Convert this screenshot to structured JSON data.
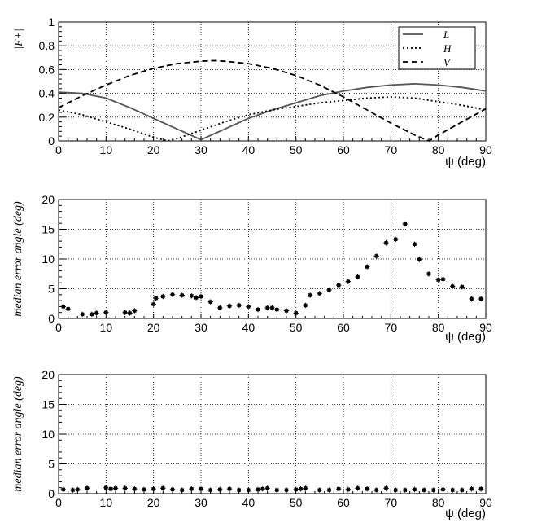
{
  "chart_data": [
    {
      "type": "line",
      "ylabel": "|F+|",
      "xlabel": "ψ (deg)",
      "xlim": [
        0,
        90
      ],
      "ylim": [
        0,
        1
      ],
      "xticks": [
        "0",
        "10",
        "20",
        "30",
        "40",
        "50",
        "60",
        "70",
        "80",
        "90"
      ],
      "yticks": [
        "0",
        "0.2",
        "0.4",
        "0.6",
        "0.8",
        "1"
      ],
      "grid": true,
      "legend_position": "top-right",
      "series": [
        {
          "name": "L",
          "style": "solid",
          "color": "#555555",
          "x": [
            0,
            5,
            10,
            15,
            20,
            25,
            30,
            35,
            40,
            45,
            50,
            55,
            60,
            65,
            70,
            75,
            80,
            85,
            90
          ],
          "y": [
            0.41,
            0.4,
            0.36,
            0.28,
            0.19,
            0.1,
            0.01,
            0.1,
            0.19,
            0.26,
            0.32,
            0.38,
            0.42,
            0.45,
            0.47,
            0.48,
            0.47,
            0.45,
            0.42
          ]
        },
        {
          "name": "H",
          "style": "dotted",
          "color": "#000000",
          "x": [
            0,
            5,
            10,
            15,
            20,
            23,
            25,
            30,
            35,
            40,
            45,
            50,
            55,
            60,
            65,
            70,
            75,
            80,
            85,
            90
          ],
          "y": [
            0.26,
            0.22,
            0.16,
            0.1,
            0.03,
            0.0,
            0.02,
            0.09,
            0.16,
            0.22,
            0.26,
            0.29,
            0.32,
            0.34,
            0.36,
            0.37,
            0.36,
            0.33,
            0.3,
            0.26
          ]
        },
        {
          "name": "V",
          "style": "dashed",
          "color": "#000000",
          "x": [
            0,
            5,
            10,
            15,
            20,
            25,
            30,
            33,
            35,
            40,
            45,
            50,
            55,
            60,
            65,
            70,
            75,
            78,
            80,
            85,
            90
          ],
          "y": [
            0.28,
            0.38,
            0.47,
            0.55,
            0.61,
            0.65,
            0.67,
            0.675,
            0.67,
            0.65,
            0.61,
            0.55,
            0.47,
            0.37,
            0.26,
            0.15,
            0.05,
            0.0,
            0.05,
            0.16,
            0.27
          ]
        }
      ]
    },
    {
      "type": "scatter",
      "ylabel": "median error angle (deg)",
      "xlabel": "ψ (deg)",
      "xlim": [
        0,
        90
      ],
      "ylim": [
        0,
        20
      ],
      "xticks": [
        "0",
        "10",
        "20",
        "30",
        "40",
        "50",
        "60",
        "70",
        "80",
        "90"
      ],
      "yticks": [
        "0",
        "5",
        "10",
        "15",
        "20"
      ],
      "grid": true,
      "x": [
        1,
        2,
        5,
        7,
        8,
        10,
        14,
        15,
        16,
        20,
        20.5,
        22,
        24,
        26,
        28,
        29,
        30,
        32,
        34,
        36,
        38,
        40,
        42,
        44,
        45,
        46,
        48,
        50,
        52,
        53,
        55,
        57,
        59,
        61,
        63,
        65,
        67,
        69,
        71,
        73,
        75,
        76,
        78,
        80,
        81,
        83,
        85,
        87,
        89
      ],
      "y": [
        2,
        1.6,
        0.7,
        0.7,
        0.9,
        1.0,
        1.0,
        0.9,
        1.3,
        2.4,
        3.4,
        3.7,
        4.0,
        3.9,
        3.8,
        3.5,
        3.7,
        2.8,
        1.8,
        2.1,
        2.2,
        2.0,
        1.5,
        1.8,
        1.8,
        1.5,
        1.3,
        0.9,
        2.2,
        3.9,
        4.2,
        4.8,
        5.6,
        6.2,
        7.0,
        8.7,
        10.5,
        12.7,
        13.3,
        15.9,
        12.5,
        9.9,
        7.5,
        6.5,
        6.6,
        5.4,
        5.3,
        3.3,
        3.3
      ]
    },
    {
      "type": "scatter",
      "ylabel": "median error angle (deg)",
      "xlabel": "ψ (deg)",
      "xlim": [
        0,
        90
      ],
      "ylim": [
        0,
        20
      ],
      "xticks": [
        "0",
        "10",
        "20",
        "30",
        "40",
        "50",
        "60",
        "70",
        "80",
        "90"
      ],
      "yticks": [
        "0",
        "5",
        "10",
        "15",
        "20"
      ],
      "grid": true,
      "x": [
        1,
        3,
        4,
        6,
        10,
        11,
        12,
        14,
        16,
        18,
        20,
        22,
        24,
        26,
        28,
        30,
        32,
        34,
        36,
        38,
        40,
        42,
        43,
        44,
        46,
        48,
        50,
        51,
        52,
        55,
        57,
        59,
        61,
        63,
        65,
        67,
        69,
        71,
        73,
        75,
        77,
        79,
        81,
        83,
        85,
        87,
        89
      ],
      "y": [
        0.7,
        0.6,
        0.7,
        0.9,
        1.0,
        0.8,
        0.9,
        0.9,
        0.8,
        0.7,
        0.8,
        0.9,
        0.7,
        0.6,
        0.8,
        0.8,
        0.6,
        0.7,
        0.8,
        0.6,
        0.6,
        0.7,
        0.8,
        0.9,
        0.6,
        0.6,
        0.7,
        0.8,
        0.9,
        0.6,
        0.6,
        0.8,
        0.7,
        0.9,
        0.8,
        0.6,
        0.9,
        0.6,
        0.6,
        0.7,
        0.6,
        0.6,
        0.7,
        0.6,
        0.6,
        0.8,
        0.8
      ]
    }
  ]
}
